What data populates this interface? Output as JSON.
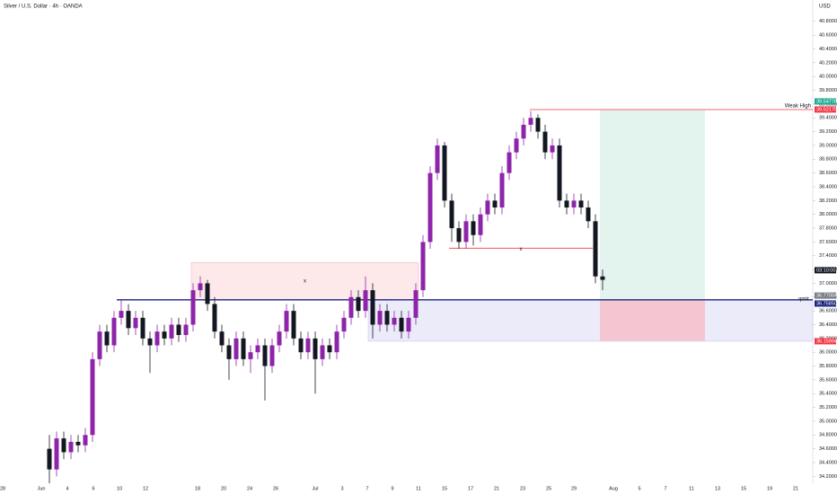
{
  "chart_data": {
    "type": "candlestick",
    "title": "Silver / U.S. Dollar · 4h · OANDA",
    "currency": "USD",
    "up_color": "#8e24aa",
    "down_color": "#131722",
    "open": [
      34.6,
      34.3,
      34.75,
      34.55,
      34.7,
      34.65,
      34.8,
      35.9,
      36.3,
      36.1,
      36.5,
      36.6,
      36.35,
      36.5,
      36.2,
      36.1,
      36.3,
      36.2,
      36.4,
      36.25,
      36.4,
      36.9,
      37.0,
      36.7,
      36.3,
      36.1,
      35.9,
      36.2,
      35.9,
      36.0,
      36.1,
      35.8,
      36.1,
      36.3,
      36.6,
      36.2,
      36.0,
      36.2,
      35.9,
      36.1,
      36.0,
      36.3,
      36.5,
      36.8,
      36.6,
      36.9,
      36.4,
      36.6,
      36.4,
      36.5,
      36.3,
      36.5,
      36.9,
      37.6,
      38.6,
      39.0,
      38.2,
      37.8,
      37.6,
      37.9,
      37.7,
      38.0,
      38.2,
      38.1,
      38.6,
      38.9,
      39.1,
      39.3,
      39.4,
      39.2,
      38.9,
      39.0,
      38.2,
      38.1,
      38.2,
      38.1,
      37.9,
      37.1
    ],
    "high": [
      34.8,
      34.85,
      34.85,
      34.8,
      34.8,
      34.9,
      36.0,
      36.4,
      36.4,
      36.6,
      36.75,
      36.7,
      36.6,
      36.6,
      36.3,
      36.4,
      36.4,
      36.5,
      36.5,
      36.5,
      37.0,
      37.1,
      37.05,
      36.8,
      36.4,
      36.2,
      36.3,
      36.3,
      36.1,
      36.2,
      36.2,
      36.2,
      36.4,
      36.7,
      36.7,
      36.3,
      36.3,
      36.3,
      36.2,
      36.2,
      36.4,
      36.6,
      36.9,
      36.9,
      37.1,
      37.0,
      36.7,
      36.7,
      36.6,
      36.6,
      36.6,
      37.0,
      37.7,
      38.7,
      39.1,
      39.05,
      38.3,
      37.9,
      38.0,
      38.0,
      38.1,
      38.3,
      38.3,
      38.7,
      39.0,
      39.2,
      39.4,
      39.5,
      39.45,
      39.3,
      39.1,
      39.1,
      38.3,
      38.3,
      38.3,
      38.2,
      38.0,
      37.2
    ],
    "low": [
      34.1,
      34.2,
      34.45,
      34.45,
      34.55,
      34.55,
      34.7,
      35.8,
      36.0,
      36.0,
      36.4,
      36.25,
      36.25,
      36.1,
      35.7,
      36.0,
      36.1,
      36.1,
      36.15,
      36.15,
      36.3,
      36.8,
      36.6,
      36.2,
      36.0,
      35.6,
      35.8,
      35.8,
      35.7,
      35.9,
      35.3,
      35.7,
      36.0,
      36.2,
      36.1,
      35.9,
      35.9,
      35.4,
      35.8,
      35.9,
      35.9,
      36.2,
      36.4,
      36.5,
      36.5,
      36.2,
      36.3,
      36.3,
      36.3,
      36.2,
      36.2,
      36.4,
      36.8,
      37.5,
      38.5,
      38.1,
      37.6,
      37.5,
      37.5,
      37.55,
      37.6,
      37.9,
      38.0,
      38.0,
      38.5,
      38.8,
      39.0,
      39.2,
      39.1,
      38.8,
      38.8,
      38.1,
      38.0,
      38.0,
      38.0,
      37.8,
      37.0,
      36.9
    ],
    "close": [
      34.3,
      34.75,
      34.55,
      34.7,
      34.65,
      34.8,
      35.9,
      36.3,
      36.1,
      36.5,
      36.6,
      36.35,
      36.5,
      36.2,
      36.1,
      36.3,
      36.2,
      36.4,
      36.25,
      36.4,
      36.9,
      37.0,
      36.7,
      36.3,
      36.1,
      35.9,
      36.2,
      35.9,
      36.0,
      36.1,
      35.8,
      36.1,
      36.3,
      36.6,
      36.2,
      36.0,
      36.2,
      35.9,
      36.1,
      36.0,
      36.3,
      36.5,
      36.8,
      36.6,
      36.9,
      36.4,
      36.6,
      36.4,
      36.5,
      36.3,
      36.5,
      36.9,
      37.6,
      38.6,
      39.0,
      38.2,
      37.8,
      37.6,
      37.9,
      37.7,
      38.0,
      38.2,
      38.1,
      38.6,
      38.9,
      39.1,
      39.3,
      39.4,
      39.2,
      38.9,
      39.0,
      38.2,
      38.1,
      38.2,
      38.1,
      37.9,
      37.1,
      37.05
    ],
    "ylim": [
      34.1,
      41.11
    ],
    "yticks": [
      {
        "value": 34.2,
        "label": "34.20000"
      },
      {
        "value": 34.4,
        "label": "34.40000"
      },
      {
        "value": 34.6,
        "label": "34.60000"
      },
      {
        "value": 34.8,
        "label": "34.80000"
      },
      {
        "value": 35.0,
        "label": "35.00000"
      },
      {
        "value": 35.2,
        "label": "35.20000"
      },
      {
        "value": 35.4,
        "label": "35.40000"
      },
      {
        "value": 35.6,
        "label": "35.60000"
      },
      {
        "value": 35.8,
        "label": "35.80000"
      },
      {
        "value": 36.0,
        "label": "36.00000"
      },
      {
        "value": 36.2,
        "label": "36.20000"
      },
      {
        "value": 36.4,
        "label": "36.40000"
      },
      {
        "value": 36.6,
        "label": "36.60000"
      },
      {
        "value": 36.8,
        "label": "36.80000"
      },
      {
        "value": 37.0,
        "label": "37.00000"
      },
      {
        "value": 37.2,
        "label": "37.20000"
      },
      {
        "value": 37.4,
        "label": "37.40000"
      },
      {
        "value": 37.6,
        "label": "37.60000"
      },
      {
        "value": 37.8,
        "label": "37.80000"
      },
      {
        "value": 38.0,
        "label": "38.00000"
      },
      {
        "value": 38.2,
        "label": "38.20000"
      },
      {
        "value": 38.4,
        "label": "38.40000"
      },
      {
        "value": 38.6,
        "label": "38.60000"
      },
      {
        "value": 38.8,
        "label": "38.80000"
      },
      {
        "value": 39.0,
        "label": "39.00000"
      },
      {
        "value": 39.2,
        "label": "39.20000"
      },
      {
        "value": 39.4,
        "label": "39.40000"
      },
      {
        "value": 39.6,
        "label": "39.60000"
      },
      {
        "value": 39.8,
        "label": "39.80000"
      },
      {
        "value": 40.0,
        "label": "40.00000"
      },
      {
        "value": 40.2,
        "label": "40.20000"
      },
      {
        "value": 40.4,
        "label": "40.40000"
      },
      {
        "value": 40.6,
        "label": "40.60000"
      },
      {
        "value": 40.8,
        "label": "40.80000"
      }
    ],
    "xticks": [
      "28",
      "Jun",
      "4",
      "6",
      "10",
      "12",
      "18",
      "20",
      "24",
      "26",
      "Jul",
      "3",
      "7",
      "9",
      "11",
      "15",
      "17",
      "21",
      "23",
      "25",
      "29",
      "Aug",
      "5",
      "7",
      "11",
      "13",
      "15",
      "19",
      "21"
    ],
    "levels": [
      {
        "name": "Weak High",
        "value": 39.52,
        "color": "#f23645"
      },
      {
        "name": "qmtr",
        "value": 36.76,
        "color": "#1a237e"
      },
      {
        "name": "x",
        "value": 37.51,
        "color": "#f23645"
      }
    ],
    "zones": [
      {
        "name": "x",
        "top": 37.3,
        "bottom": 36.76,
        "color": "#fde8ea"
      },
      {
        "top": 36.76,
        "bottom": 36.16,
        "color": "#ecebf9"
      },
      {
        "top": 39.52,
        "bottom": 36.76,
        "color": "#e3f4ef"
      },
      {
        "top": 36.76,
        "bottom": 36.16,
        "color": "#f4c6d2"
      }
    ],
    "axis_labels": [
      {
        "value": 39.54778,
        "label": "39.54778",
        "color": "#22ab94"
      },
      {
        "value": 39.52175,
        "label": "39.52175",
        "color": "#f23645"
      },
      {
        "value": 37.19,
        "label": "03:10:00",
        "color": "#131722"
      },
      {
        "value": 36.77004,
        "label": "36.77004",
        "color": "#787b86"
      },
      {
        "value": 36.7585,
        "label": "36.75850",
        "color": "#1a237e"
      },
      {
        "value": 36.15994,
        "label": "36.15994",
        "color": "#f23645"
      }
    ]
  }
}
